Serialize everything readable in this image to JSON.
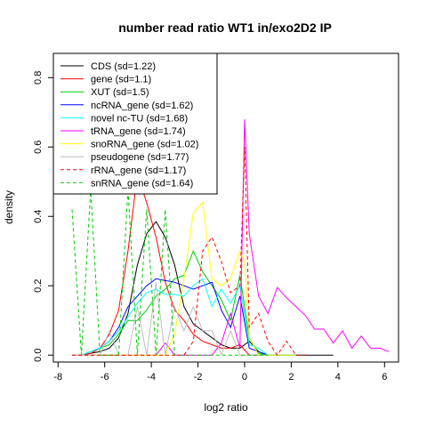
{
  "chart_data": {
    "type": "line",
    "title": "number read ratio WT1 in/exo2D2 IP",
    "xlabel": "log2 ratio",
    "ylabel": "density",
    "xlim": [
      -8.2,
      6.6
    ],
    "ylim": [
      -0.02,
      0.87
    ],
    "xticks": [
      -8,
      -6,
      -4,
      -2,
      0,
      2,
      4,
      6
    ],
    "yticks": [
      0.0,
      0.2,
      0.4,
      0.6,
      0.8
    ],
    "grid": false,
    "legend_position": "top-left",
    "series": [
      {
        "name": "CDS (sd=1.22)",
        "color": "#000000",
        "dash": "solid",
        "x": [
          -7.4,
          -7.0,
          -6.6,
          -6.2,
          -5.8,
          -5.4,
          -5.0,
          -4.6,
          -4.2,
          -3.8,
          -3.4,
          -3.0,
          -2.6,
          -2.2,
          -1.8,
          -1.4,
          -1.0,
          -0.6,
          -0.2,
          0.2,
          0.6,
          1.0,
          1.4,
          1.8,
          2.2,
          2.6,
          3.0,
          3.4,
          3.8
        ],
        "y": [
          0.0,
          0.0,
          0.005,
          0.01,
          0.02,
          0.05,
          0.12,
          0.26,
          0.35,
          0.385,
          0.34,
          0.26,
          0.14,
          0.09,
          0.07,
          0.05,
          0.03,
          0.02,
          0.02,
          0.04,
          0.01,
          0.0,
          0.0,
          0.0,
          0.0,
          0.0,
          0.0,
          0.0,
          0.0
        ]
      },
      {
        "name": "gene (sd=1.1)",
        "color": "#ff0000",
        "dash": "solid",
        "x": [
          -7.4,
          -7.0,
          -6.6,
          -6.2,
          -5.8,
          -5.4,
          -5.0,
          -4.6,
          -4.2,
          -3.8,
          -3.4,
          -3.0,
          -2.6,
          -2.2,
          -1.8,
          -1.4,
          -1.0,
          -0.6,
          -0.2,
          0.2,
          0.6,
          1.0,
          1.4,
          1.8,
          2.2
        ],
        "y": [
          0.0,
          0.0,
          0.005,
          0.02,
          0.06,
          0.13,
          0.3,
          0.52,
          0.44,
          0.34,
          0.21,
          0.13,
          0.1,
          0.06,
          0.04,
          0.03,
          0.02,
          0.02,
          0.03,
          0.0,
          0.0,
          0.0,
          0.0,
          0.0,
          0.0
        ]
      },
      {
        "name": "XUT (sd=1.5)",
        "color": "#00cd00",
        "dash": "solid",
        "x": [
          -7.4,
          -7.0,
          -6.6,
          -6.2,
          -5.8,
          -5.4,
          -5.0,
          -4.6,
          -4.2,
          -3.8,
          -3.4,
          -3.0,
          -2.6,
          -2.2,
          -1.8,
          -1.4,
          -1.0,
          -0.6,
          -0.2,
          0.2,
          0.6,
          1.0,
          1.4,
          1.8,
          2.2
        ],
        "y": [
          0.0,
          0.0,
          0.01,
          0.02,
          0.03,
          0.06,
          0.1,
          0.1,
          0.13,
          0.17,
          0.19,
          0.22,
          0.23,
          0.3,
          0.24,
          0.2,
          0.16,
          0.1,
          0.23,
          0.05,
          0.005,
          0.0,
          0.0,
          0.0,
          0.0
        ]
      },
      {
        "name": "ncRNA_gene (sd=1.62)",
        "color": "#0000ff",
        "dash": "solid",
        "x": [
          -7.4,
          -7.0,
          -6.6,
          -6.2,
          -5.8,
          -5.4,
          -5.0,
          -4.6,
          -4.2,
          -3.8,
          -3.4,
          -3.0,
          -2.6,
          -2.2,
          -1.8,
          -1.4,
          -1.0,
          -0.6,
          -0.2,
          0.2,
          0.6,
          1.0,
          1.4,
          1.8,
          2.2
        ],
        "y": [
          0.0,
          0.0,
          0.01,
          0.02,
          0.04,
          0.08,
          0.14,
          0.17,
          0.2,
          0.22,
          0.215,
          0.21,
          0.2,
          0.19,
          0.2,
          0.21,
          0.13,
          0.08,
          0.17,
          0.02,
          0.01,
          0.0,
          0.0,
          0.0,
          0.0
        ]
      },
      {
        "name": "novel nc-TU (sd=1.68)",
        "color": "#00ffff",
        "dash": "solid",
        "x": [
          -7.4,
          -7.0,
          -6.6,
          -6.2,
          -5.8,
          -5.4,
          -5.0,
          -4.6,
          -4.2,
          -3.8,
          -3.4,
          -3.0,
          -2.6,
          -2.2,
          -1.8,
          -1.4,
          -1.0,
          -0.6,
          -0.2,
          0.2,
          0.6,
          1.0,
          1.4,
          1.8,
          2.2
        ],
        "y": [
          0.0,
          0.0,
          0.01,
          0.02,
          0.04,
          0.07,
          0.11,
          0.15,
          0.18,
          0.19,
          0.175,
          0.175,
          0.17,
          0.2,
          0.22,
          0.14,
          0.19,
          0.15,
          0.2,
          0.03,
          0.02,
          0.0,
          0.0,
          0.0,
          0.0
        ]
      },
      {
        "name": "tRNA_gene (sd=1.74)",
        "color": "#ff00ff",
        "dash": "solid",
        "x": [
          -7.4,
          -7.0,
          -6.6,
          -6.2,
          -5.8,
          -5.4,
          -5.0,
          -4.6,
          -4.2,
          -3.8,
          -3.4,
          -3.0,
          -2.6,
          -2.2,
          -1.8,
          -1.4,
          -1.0,
          -0.6,
          -0.2,
          0.0,
          0.2,
          0.6,
          1.0,
          1.4,
          1.8,
          2.2,
          2.6,
          3.0,
          3.4,
          3.8,
          4.2,
          4.6,
          5.0,
          5.4,
          5.8,
          6.2
        ],
        "y": [
          0.0,
          0.0,
          0.0,
          0.0,
          0.0,
          0.0,
          0.0,
          0.0,
          0.0,
          0.0,
          0.035,
          0.0,
          0.0,
          0.0,
          0.0,
          0.0,
          0.035,
          0.12,
          0.02,
          0.68,
          0.35,
          0.17,
          0.12,
          0.195,
          0.165,
          0.14,
          0.115,
          0.075,
          0.075,
          0.035,
          0.07,
          0.02,
          0.055,
          0.02,
          0.02,
          0.01
        ]
      },
      {
        "name": "snoRNA_gene (sd=1.02)",
        "color": "#ffff00",
        "dash": "solid",
        "x": [
          -7.4,
          -7.0,
          -6.6,
          -6.2,
          -5.8,
          -5.4,
          -5.0,
          -4.6,
          -4.2,
          -3.8,
          -3.4,
          -3.0,
          -2.6,
          -2.2,
          -1.8,
          -1.4,
          -1.0,
          -0.6,
          -0.2,
          0.0,
          0.2,
          0.6,
          1.0,
          1.4,
          1.8,
          2.2
        ],
        "y": [
          0.0,
          0.0,
          0.0,
          0.0,
          0.0,
          0.0,
          0.0,
          0.0,
          0.0,
          0.0,
          0.0,
          0.06,
          0.22,
          0.41,
          0.44,
          0.22,
          0.2,
          0.22,
          0.3,
          0.27,
          0.05,
          0.0,
          0.0,
          0.0,
          0.0,
          0.0
        ]
      },
      {
        "name": "pseudogene (sd=1.77)",
        "color": "#bebebe",
        "dash": "solid",
        "x": [
          -7.4,
          -7.0,
          -6.6,
          -6.2,
          -5.8,
          -5.4,
          -5.0,
          -4.6,
          -4.2,
          -3.8,
          -3.4,
          -3.0,
          -2.6,
          -2.2,
          -1.8,
          -1.4,
          -1.0,
          -0.6,
          -0.2,
          0.2,
          0.6,
          1.0
        ],
        "y": [
          0.0,
          0.0,
          0.0,
          0.0,
          0.07,
          0.0,
          0.0,
          0.14,
          0.0,
          0.21,
          0.0,
          0.14,
          0.07,
          0.14,
          0.07,
          0.07,
          0.0,
          0.07,
          0.0,
          0.0,
          0.0,
          0.0
        ]
      },
      {
        "name": "rRNA_gene (sd=1.17)",
        "color": "#ff0000",
        "dash": "dashed",
        "x": [
          -7.4,
          -7.0,
          -6.6,
          -6.2,
          -5.8,
          -5.4,
          -5.0,
          -4.6,
          -4.2,
          -3.8,
          -3.4,
          -3.0,
          -2.6,
          -2.2,
          -1.8,
          -1.4,
          -1.0,
          -0.6,
          -0.2,
          0.0,
          0.2,
          0.6,
          1.0,
          1.4,
          1.8,
          2.2,
          2.6
        ],
        "y": [
          0.0,
          0.0,
          0.0,
          0.0,
          0.0,
          0.0,
          0.0,
          0.0,
          0.0,
          0.0,
          0.0,
          0.0,
          0.0,
          0.04,
          0.3,
          0.34,
          0.27,
          0.18,
          0.2,
          0.6,
          0.08,
          0.12,
          0.04,
          0.0,
          0.04,
          0.0,
          0.0
        ]
      },
      {
        "name": "snRNA_gene (sd=1.64)",
        "color": "#00cd00",
        "dash": "dashed",
        "x": [
          -7.4,
          -7.0,
          -6.6,
          -6.2,
          -5.8,
          -5.4,
          -5.0,
          -4.6,
          -4.2,
          -3.8,
          -3.4,
          -3.0,
          -2.6,
          -2.2,
          -1.8,
          -1.4,
          -1.0,
          -0.6,
          -0.2,
          0.2,
          0.6,
          1.0
        ],
        "y": [
          0.42,
          0.0,
          0.48,
          0.0,
          0.0,
          0.0,
          0.48,
          0.0,
          0.42,
          0.0,
          0.42,
          0.0,
          0.0,
          0.0,
          0.0,
          0.0,
          0.0,
          0.0,
          0.0,
          0.0,
          0.0,
          0.0
        ]
      }
    ]
  }
}
